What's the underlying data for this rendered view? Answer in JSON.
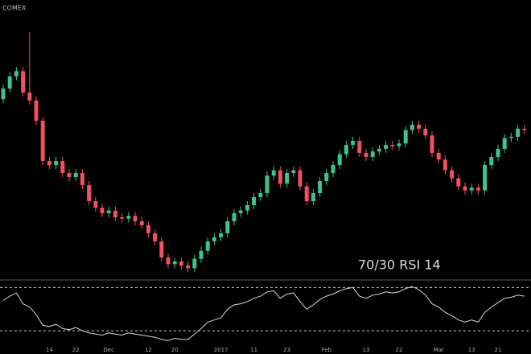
{
  "chart_data": {
    "type": "candlestick",
    "title": ", COMEX",
    "annotation": "70/30 RSI 14",
    "categories": [
      null,
      null,
      null,
      null,
      null,
      null,
      null,
      "14",
      null,
      null,
      null,
      "22",
      null,
      null,
      null,
      null,
      "Dec",
      null,
      null,
      null,
      null,
      null,
      "12",
      null,
      null,
      null,
      "20",
      null,
      null,
      null,
      null,
      null,
      null,
      "2017",
      null,
      null,
      null,
      null,
      "11",
      null,
      null,
      null,
      null,
      "23",
      null,
      null,
      null,
      null,
      null,
      "Feb",
      null,
      null,
      null,
      null,
      null,
      "13",
      null,
      null,
      null,
      null,
      "22",
      null,
      null,
      null,
      null,
      null,
      "Mar",
      null,
      null,
      null,
      null,
      "13",
      null,
      null,
      null,
      "21",
      null,
      null,
      null,
      null
    ],
    "open": [
      1266,
      1274,
      1283,
      1287,
      1271,
      1265,
      1250,
      1220,
      1217,
      1220,
      1211,
      1208,
      1211,
      1202,
      1190,
      1185,
      1181,
      1183,
      1178,
      1177,
      1179,
      1175,
      1172,
      1166,
      1160,
      1148,
      1143,
      1145,
      1142,
      1140,
      1147,
      1153,
      1160,
      1163,
      1166,
      1175,
      1181,
      1183,
      1187,
      1193,
      1196,
      1209,
      1213,
      1203,
      1211,
      1213,
      1201,
      1190,
      1196,
      1205,
      1211,
      1217,
      1225,
      1232,
      1235,
      1226,
      1223,
      1227,
      1229,
      1232,
      1231,
      1233,
      1243,
      1247,
      1244,
      1239,
      1226,
      1221,
      1213,
      1207,
      1201,
      1198,
      1200,
      1198,
      1217,
      1223,
      1229,
      1237,
      1238,
      1244
    ],
    "high": [
      1277,
      1286,
      1290,
      1290,
      1316,
      1268,
      1253,
      1223,
      1223,
      1223,
      1214,
      1214,
      1214,
      1205,
      1193,
      1188,
      1186,
      1186,
      1181,
      1182,
      1182,
      1178,
      1175,
      1169,
      1163,
      1151,
      1148,
      1148,
      1145,
      1150,
      1156,
      1163,
      1166,
      1169,
      1178,
      1184,
      1186,
      1190,
      1196,
      1199,
      1212,
      1216,
      1216,
      1214,
      1216,
      1216,
      1204,
      1199,
      1208,
      1214,
      1220,
      1228,
      1235,
      1238,
      1238,
      1229,
      1230,
      1232,
      1235,
      1235,
      1236,
      1246,
      1250,
      1250,
      1247,
      1242,
      1229,
      1224,
      1216,
      1210,
      1204,
      1203,
      1203,
      1220,
      1226,
      1232,
      1240,
      1241,
      1247,
      1247
    ],
    "low": [
      1263,
      1271,
      1280,
      1268,
      1262,
      1247,
      1217,
      1214,
      1214,
      1208,
      1205,
      1205,
      1199,
      1187,
      1182,
      1178,
      1178,
      1175,
      1174,
      1174,
      1172,
      1169,
      1163,
      1157,
      1145,
      1140,
      1140,
      1139,
      1137,
      1137,
      1144,
      1150,
      1157,
      1160,
      1163,
      1172,
      1178,
      1180,
      1184,
      1190,
      1193,
      1206,
      1200,
      1200,
      1208,
      1198,
      1187,
      1187,
      1193,
      1202,
      1208,
      1214,
      1222,
      1229,
      1223,
      1220,
      1220,
      1224,
      1226,
      1228,
      1228,
      1230,
      1240,
      1241,
      1236,
      1223,
      1218,
      1210,
      1204,
      1198,
      1195,
      1195,
      1195,
      1195,
      1214,
      1220,
      1226,
      1234,
      1235,
      1240
    ],
    "close": [
      1274,
      1283,
      1287,
      1271,
      1265,
      1250,
      1220,
      1217,
      1220,
      1211,
      1208,
      1211,
      1202,
      1190,
      1185,
      1181,
      1183,
      1178,
      1177,
      1179,
      1175,
      1172,
      1166,
      1160,
      1148,
      1143,
      1145,
      1142,
      1140,
      1147,
      1153,
      1160,
      1163,
      1166,
      1175,
      1181,
      1183,
      1187,
      1193,
      1196,
      1209,
      1213,
      1203,
      1211,
      1213,
      1201,
      1190,
      1196,
      1205,
      1211,
      1217,
      1225,
      1232,
      1235,
      1226,
      1223,
      1227,
      1229,
      1232,
      1231,
      1233,
      1243,
      1247,
      1244,
      1239,
      1226,
      1221,
      1213,
      1207,
      1201,
      1198,
      1200,
      1198,
      1217,
      1223,
      1229,
      1237,
      1238,
      1244,
      1243
    ],
    "up_color": "#3ec48a",
    "down_color": "#f0505f",
    "ylim": [
      1133,
      1340
    ],
    "rsi": {
      "values": [
        58,
        62,
        65,
        55,
        52,
        45,
        35,
        34,
        36,
        32,
        31,
        33,
        30,
        28,
        27,
        26,
        28,
        27,
        26,
        28,
        27,
        26,
        25,
        24,
        22,
        21,
        23,
        22,
        22,
        27,
        32,
        38,
        40,
        42,
        50,
        54,
        55,
        57,
        60,
        62,
        66,
        67,
        60,
        64,
        65,
        57,
        50,
        54,
        59,
        62,
        64,
        67,
        69,
        70,
        62,
        60,
        63,
        64,
        66,
        65,
        66,
        69,
        71,
        68,
        63,
        55,
        52,
        47,
        44,
        40,
        38,
        40,
        38,
        47,
        52,
        56,
        60,
        61,
        63,
        62
      ],
      "color": "#d8d8d8",
      "ylim": [
        10,
        77
      ],
      "levels": [
        70,
        30
      ]
    }
  }
}
